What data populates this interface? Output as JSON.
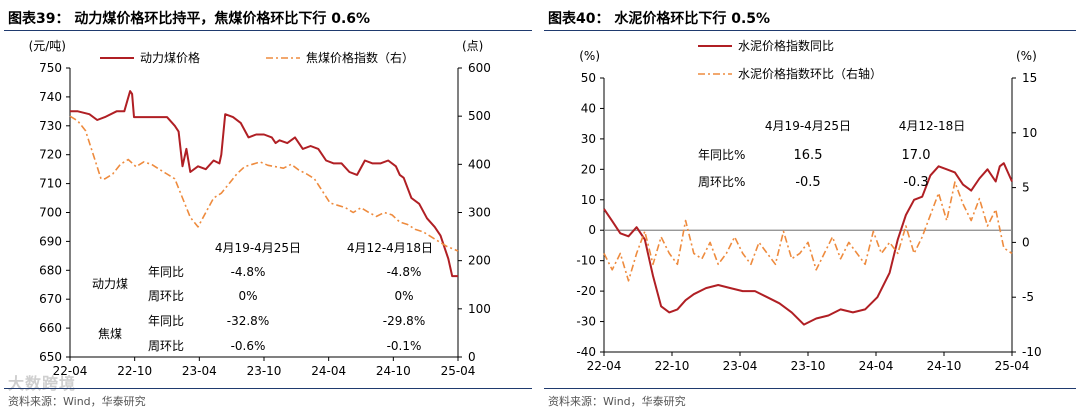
{
  "chart_data": [
    {
      "type": "line",
      "title": "图表39： 动力煤价格环比持平，焦煤价格环比下行 0.6%",
      "source": "资料来源：Wind，华泰研究",
      "left_axis_unit": "(元/吨)",
      "right_axis_unit": "(点)",
      "ylim_left": [
        650,
        750
      ],
      "ylim_right": [
        0,
        600
      ],
      "yticks_left": [
        "750",
        "740",
        "730",
        "720",
        "710",
        "700",
        "690",
        "680",
        "670",
        "660",
        "650"
      ],
      "yticks_right": [
        "600",
        "500",
        "400",
        "300",
        "200",
        "100",
        "0"
      ],
      "xticks": [
        "22-04",
        "22-10",
        "23-04",
        "23-10",
        "24-04",
        "24-10",
        "25-04"
      ],
      "legend": [
        "动力煤价格",
        "焦煤价格指数（右）"
      ],
      "series": [
        {
          "name": "动力煤价格",
          "axis": "left",
          "color": "#b01f24",
          "style": "solid",
          "x": [
            0,
            0.02,
            0.05,
            0.07,
            0.09,
            0.12,
            0.14,
            0.155,
            0.16,
            0.165,
            0.18,
            0.25,
            0.27,
            0.28,
            0.29,
            0.3,
            0.31,
            0.33,
            0.35,
            0.37,
            0.385,
            0.39,
            0.4,
            0.42,
            0.44,
            0.46,
            0.48,
            0.5,
            0.52,
            0.53,
            0.54,
            0.56,
            0.58,
            0.6,
            0.62,
            0.64,
            0.66,
            0.68,
            0.7,
            0.72,
            0.74,
            0.76,
            0.78,
            0.8,
            0.82,
            0.84,
            0.85,
            0.86,
            0.88,
            0.9,
            0.92,
            0.94,
            0.955,
            0.965,
            0.975,
            0.985,
            1.0
          ],
          "values": [
            735,
            735,
            734,
            732,
            733,
            735,
            735,
            742,
            741,
            733,
            733,
            733,
            730,
            728,
            716,
            722,
            714,
            716,
            715,
            718,
            717,
            720,
            734,
            733,
            731,
            726,
            727,
            727,
            726,
            724,
            725,
            724,
            726,
            722,
            723,
            722,
            718,
            717,
            717,
            714,
            713,
            718,
            717,
            717,
            718,
            716,
            713,
            712,
            705,
            703,
            698,
            695,
            692,
            688,
            684,
            678,
            678
          ]
        },
        {
          "name": "焦煤价格指数（右）",
          "axis": "right",
          "color": "#ee8b3e",
          "style": "dashdot",
          "x": [
            0,
            0.02,
            0.04,
            0.06,
            0.08,
            0.09,
            0.11,
            0.13,
            0.15,
            0.17,
            0.19,
            0.21,
            0.23,
            0.25,
            0.27,
            0.29,
            0.31,
            0.33,
            0.35,
            0.37,
            0.39,
            0.41,
            0.43,
            0.45,
            0.47,
            0.49,
            0.51,
            0.53,
            0.55,
            0.57,
            0.59,
            0.61,
            0.63,
            0.65,
            0.67,
            0.69,
            0.71,
            0.73,
            0.75,
            0.77,
            0.79,
            0.81,
            0.83,
            0.85,
            0.87,
            0.89,
            0.91,
            0.93,
            0.95,
            0.97,
            1.0
          ],
          "values": [
            500,
            490,
            470,
            420,
            370,
            370,
            380,
            400,
            410,
            395,
            405,
            400,
            390,
            380,
            370,
            330,
            290,
            270,
            300,
            330,
            340,
            360,
            380,
            395,
            400,
            405,
            398,
            395,
            392,
            400,
            388,
            380,
            370,
            345,
            320,
            315,
            310,
            300,
            310,
            300,
            292,
            300,
            295,
            280,
            275,
            265,
            260,
            250,
            240,
            230,
            220
          ]
        }
      ],
      "annotation": {
        "period_labels": [
          "4月19-4月25日",
          "4月12-4月18日"
        ],
        "groups": [
          {
            "name": "动力煤",
            "rows": [
              {
                "label": "年同比",
                "v1": "-4.8%",
                "v2": "-4.8%"
              },
              {
                "label": "周环比",
                "v1": "0%",
                "v2": "0%"
              }
            ]
          },
          {
            "name": "焦煤",
            "rows": [
              {
                "label": "年同比",
                "v1": "-32.8%",
                "v2": "-29.8%"
              },
              {
                "label": "周环比",
                "v1": "-0.6%",
                "v2": "-0.1%"
              }
            ]
          }
        ]
      },
      "watermark": "大数跨境"
    },
    {
      "type": "line",
      "title": "图表40： 水泥价格环比下行 0.5%",
      "source": "资料来源：Wind，华泰研究",
      "left_axis_unit": "(%)",
      "right_axis_unit": "(%)",
      "ylim_left": [
        -40,
        50
      ],
      "ylim_right": [
        -10,
        15
      ],
      "yticks_left": [
        "50",
        "40",
        "30",
        "20",
        "10",
        "0",
        "-10",
        "-20",
        "-30",
        "-40"
      ],
      "yticks_right": [
        "15",
        "10",
        "5",
        "0",
        "-5",
        "-10"
      ],
      "xticks": [
        "22-04",
        "22-10",
        "23-04",
        "23-10",
        "24-04",
        "24-10",
        "25-04"
      ],
      "legend": [
        "水泥价格指数同比",
        "水泥价格指数环比（右轴）"
      ],
      "series": [
        {
          "name": "水泥价格指数同比",
          "axis": "left",
          "color": "#b01f24",
          "style": "solid",
          "x": [
            0,
            0.02,
            0.04,
            0.06,
            0.08,
            0.1,
            0.12,
            0.14,
            0.16,
            0.18,
            0.2,
            0.22,
            0.25,
            0.28,
            0.31,
            0.34,
            0.37,
            0.4,
            0.43,
            0.46,
            0.49,
            0.52,
            0.55,
            0.58,
            0.61,
            0.64,
            0.67,
            0.7,
            0.72,
            0.74,
            0.76,
            0.78,
            0.8,
            0.82,
            0.84,
            0.86,
            0.88,
            0.9,
            0.92,
            0.94,
            0.96,
            0.97,
            0.98,
            0.99,
            1.0
          ],
          "values": [
            7,
            3,
            -1,
            -2,
            1,
            -3,
            -15,
            -25,
            -27,
            -26,
            -23,
            -21,
            -19,
            -18,
            -19,
            -20,
            -20,
            -22,
            -24,
            -27,
            -31,
            -29,
            -28,
            -26,
            -27,
            -26,
            -22,
            -14,
            -3,
            5,
            10,
            11,
            18,
            21,
            20,
            19,
            15,
            13,
            17,
            20,
            16,
            21,
            22,
            19,
            16
          ]
        },
        {
          "name": "水泥价格指数环比（右轴）",
          "axis": "right",
          "color": "#ee8b3e",
          "style": "dashdot",
          "x": [
            0,
            0.02,
            0.04,
            0.06,
            0.08,
            0.1,
            0.12,
            0.14,
            0.16,
            0.18,
            0.2,
            0.22,
            0.24,
            0.26,
            0.28,
            0.3,
            0.32,
            0.34,
            0.36,
            0.38,
            0.4,
            0.42,
            0.44,
            0.46,
            0.48,
            0.5,
            0.52,
            0.54,
            0.56,
            0.58,
            0.6,
            0.62,
            0.64,
            0.66,
            0.68,
            0.7,
            0.72,
            0.74,
            0.76,
            0.78,
            0.8,
            0.82,
            0.84,
            0.86,
            0.88,
            0.9,
            0.92,
            0.94,
            0.96,
            0.98,
            1.0
          ],
          "values": [
            -1,
            -2.5,
            -1,
            -3.5,
            -1,
            1,
            -2,
            0.5,
            -1,
            -2,
            2,
            -1,
            -1.5,
            0,
            -2,
            -1,
            0.5,
            -1,
            -2,
            0,
            -1,
            -2,
            1,
            -1.5,
            -1,
            0,
            -2.5,
            -1,
            0.5,
            -1.5,
            0,
            -1,
            -2,
            1,
            -1,
            0,
            -1,
            1.5,
            -1,
            0.5,
            2.5,
            4.5,
            2,
            5.5,
            3.5,
            2,
            4,
            1.5,
            3,
            -0.5,
            -1
          ]
        }
      ],
      "annotation": {
        "period_labels": [
          "4月19-4月25日",
          "4月12-18日"
        ],
        "rows": [
          {
            "label": "年同比%",
            "v1": "16.5",
            "v2": "17.0"
          },
          {
            "label": "周环比%",
            "v1": "-0.5",
            "v2": "-0.3"
          }
        ]
      }
    }
  ]
}
